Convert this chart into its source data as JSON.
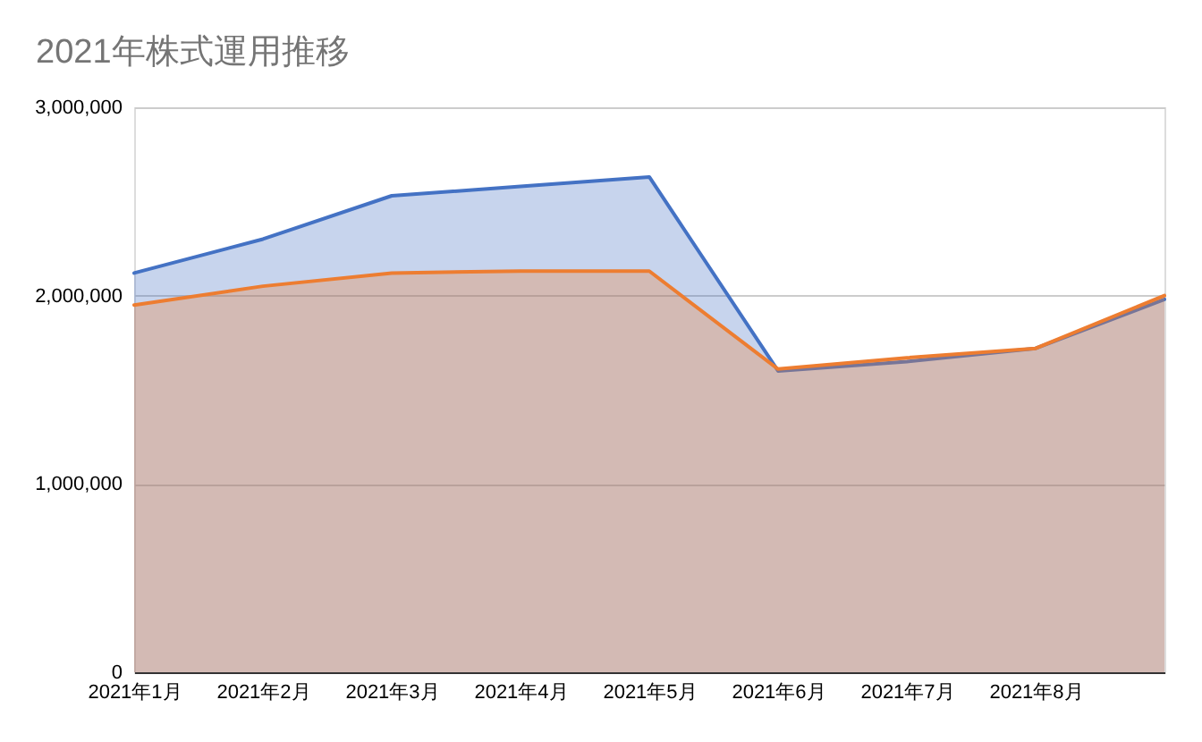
{
  "chart_data": {
    "type": "area",
    "title": "2021年株式運用推移",
    "categories": [
      "2021年1月",
      "2021年2月",
      "2021年3月",
      "2021年4月",
      "2021年5月",
      "2021年6月",
      "2021年7月",
      "2021年8月",
      null
    ],
    "series": [
      {
        "color": "#4472c4",
        "values": [
          2120000,
          2300000,
          2530000,
          2580000,
          2630000,
          1600000,
          1650000,
          1720000,
          1980000
        ]
      },
      {
        "color": "#ed7d31",
        "values": [
          1950000,
          2050000,
          2120000,
          2130000,
          2130000,
          1610000,
          1670000,
          1720000,
          2000000
        ]
      }
    ],
    "ylim": [
      0,
      3000000
    ],
    "yticks": [
      0,
      {
        "value": 1000000,
        "label": "1,000,000"
      },
      {
        "value": 2000000,
        "label": "2,000,000"
      },
      {
        "value": 3000000,
        "label": "3,000,000"
      }
    ],
    "grid": "y"
  }
}
